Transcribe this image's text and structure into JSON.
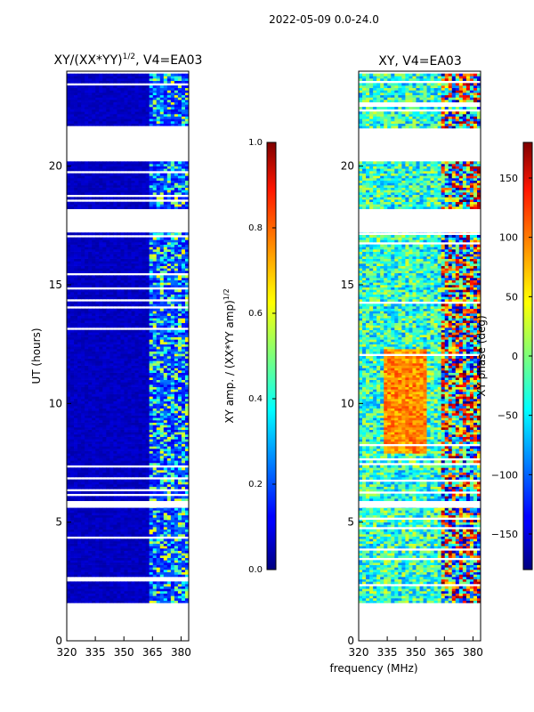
{
  "suptitle": "2022-05-09 0.0-24.0",
  "chart_data": [
    {
      "type": "heatmap",
      "title_main": "XY/(XX*YY)",
      "title_sup": "1/2",
      "title_tail": ", V4=EA03",
      "xlabel": "",
      "ylabel": "UT (hours)",
      "xlim": [
        320,
        384
      ],
      "ylim": [
        0,
        24
      ],
      "xticks": [
        320,
        335,
        350,
        365,
        380
      ],
      "yticks": [
        0,
        5,
        10,
        15,
        20
      ],
      "colorbar": {
        "label": "XY amp. / (XX*YY amp)",
        "label_sup": "1/2",
        "range": [
          0.0,
          1.0
        ],
        "ticks": [
          "0.0",
          "0.2",
          "0.4",
          "0.6",
          "0.8",
          "1.0"
        ],
        "tick_values": [
          0.0,
          0.2,
          0.4,
          0.6,
          0.8,
          1.0
        ]
      }
    },
    {
      "type": "heatmap",
      "title_main": "XY, V4=EA03",
      "xlabel": "frequency (MHz)",
      "ylabel": "",
      "xlim": [
        320,
        384
      ],
      "ylim": [
        0,
        24
      ],
      "xticks": [
        320,
        335,
        350,
        365,
        380
      ],
      "yticks": [
        0,
        5,
        10,
        15,
        20
      ],
      "colorbar": {
        "label": "XY phase (deg)",
        "range": [
          -180,
          180
        ],
        "ticks": [
          "150",
          "100",
          "50",
          "0",
          "−50",
          "−100",
          "−150"
        ],
        "tick_values": [
          150,
          100,
          50,
          0,
          -50,
          -100,
          -150
        ]
      }
    }
  ],
  "data_coverage_ut": [
    [
      1.6,
      5.6
    ],
    [
      5.9,
      17.2
    ],
    [
      18.2,
      20.2
    ],
    [
      21.6,
      23.9
    ]
  ],
  "flagged_band_mhz": [
    363,
    384
  ]
}
